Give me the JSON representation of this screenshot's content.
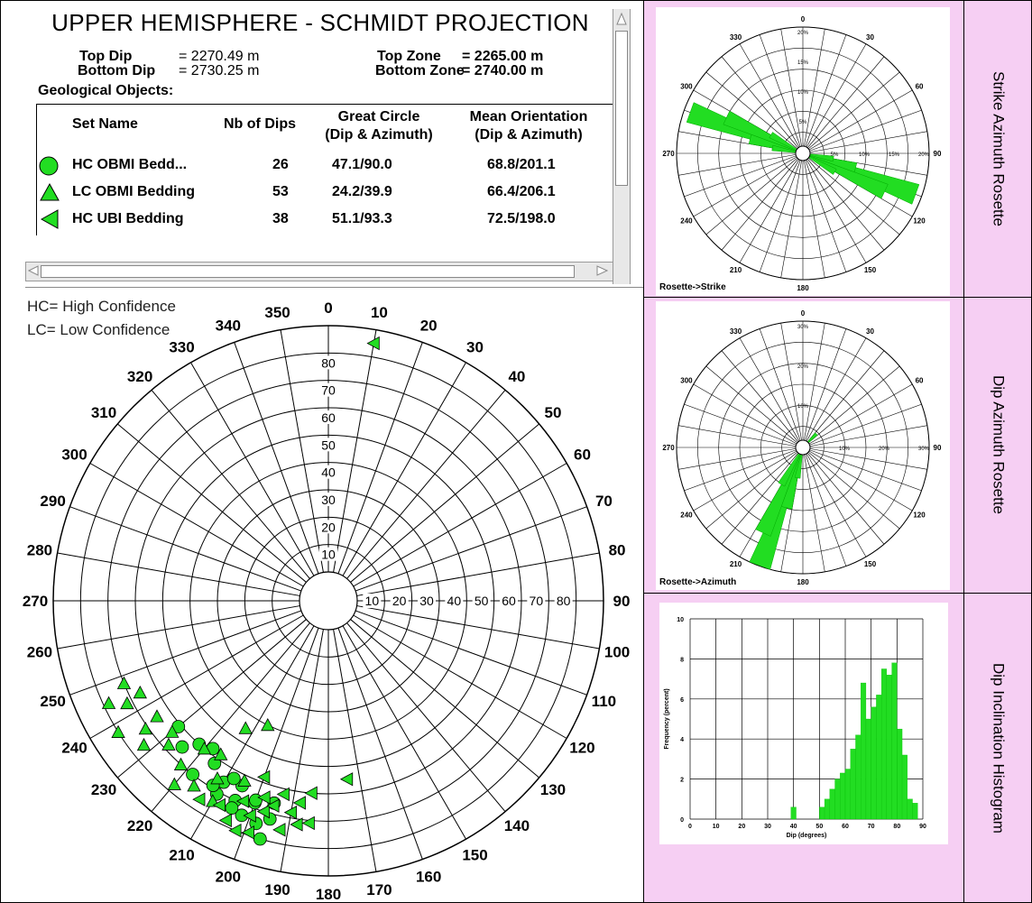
{
  "header": {
    "title": "UPPER HEMISPHERE - SCHMIDT PROJECTION",
    "top_dip_label": "Top    Dip",
    "top_dip_value": "= 2270.49 m",
    "bottom_dip_label": "Bottom Dip",
    "bottom_dip_value": "= 2730.25 m",
    "top_zone_label": "Top    Zone",
    "top_zone_value": "= 2265.00 m",
    "bottom_zone_label": "Bottom Zone",
    "bottom_zone_value": "= 2740.00 m",
    "geo_objects": "Geological Objects:"
  },
  "table": {
    "col_set": "Set Name",
    "col_nb": "Nb of Dips",
    "col_great_1": "Great Circle",
    "col_great_2": "(Dip & Azimuth)",
    "col_mean_1": "Mean Orientation",
    "col_mean_2": "(Dip & Azimuth)",
    "rows": [
      {
        "symbol": "circle",
        "name": "HC OBMI Bedd...",
        "nb": "26",
        "great": "47.1/90.0",
        "mean": "68.8/201.1"
      },
      {
        "symbol": "triangle-up",
        "name": "LC OBMI Bedding",
        "nb": "53",
        "great": "24.2/39.9",
        "mean": "66.4/206.1"
      },
      {
        "symbol": "triangle-left",
        "name": "HC UBI Bedding",
        "nb": "38",
        "great": "51.1/93.3",
        "mean": "72.5/198.0"
      }
    ]
  },
  "notes": {
    "hc": "HC= High Confidence",
    "lc": "LC= Low Confidence"
  },
  "panel_labels": {
    "strike": "Strike Azimuth Rosette",
    "dip_az": "Dip Azimuth Rosette",
    "dip_incl": "Dip Inclination Histogram"
  },
  "colors": {
    "marker_fill": "#22dd22",
    "rosette_fill": "#22dd22",
    "pink_panel": "#f6cff3"
  },
  "chart_data": [
    {
      "type": "scatter",
      "id": "stereonet",
      "azimuth_labels": [
        "0",
        "10",
        "20",
        "30",
        "40",
        "50",
        "60",
        "70",
        "80",
        "90",
        "100",
        "110",
        "120",
        "130",
        "140",
        "150",
        "160",
        "170",
        "180",
        "190",
        "200",
        "210",
        "220",
        "230",
        "240",
        "250",
        "260",
        "270",
        "280",
        "290",
        "300",
        "310",
        "320",
        "330",
        "340",
        "350"
      ],
      "dip_labels_vertical": [
        "10",
        "20",
        "30",
        "40",
        "50",
        "60",
        "70",
        "80"
      ],
      "dip_labels_horizontal": [
        "10",
        "20",
        "30",
        "40",
        "50",
        "60",
        "70",
        "80"
      ],
      "series": [
        {
          "name": "HC OBMI Bedd...",
          "symbol": "circle",
          "points": [
            [
              68,
              200
            ],
            [
              70,
              205
            ],
            [
              72,
              195
            ],
            [
              66,
              210
            ],
            [
              74,
              202
            ],
            [
              62,
              215
            ],
            [
              65,
              225
            ],
            [
              60,
              222
            ],
            [
              71,
              210
            ],
            [
              75,
              198
            ],
            [
              69,
              212
            ],
            [
              64,
              205
            ],
            [
              58,
              218
            ],
            [
              73,
              205
            ],
            [
              67,
              200
            ],
            [
              80,
              196
            ],
            [
              61,
              230
            ],
            [
              70,
              218
            ],
            [
              66,
              195
            ],
            [
              63,
              208
            ]
          ]
        },
        {
          "name": "LC OBMI Bedding",
          "symbol": "triangle-up",
          "points": [
            [
              78,
              245
            ],
            [
              80,
              238
            ],
            [
              72,
              243
            ],
            [
              65,
              236
            ],
            [
              70,
              248
            ],
            [
              75,
              232
            ],
            [
              66,
              244
            ],
            [
              60,
              220
            ],
            [
              73,
              216
            ],
            [
              68,
              228
            ],
            [
              58,
              215
            ],
            [
              62,
              205
            ],
            [
              64,
              230
            ],
            [
              70,
              222
            ],
            [
              66,
              212
            ],
            [
              40,
              206
            ],
            [
              45,
              213
            ],
            [
              71,
              235
            ],
            [
              74,
              210
            ],
            [
              77,
              220
            ]
          ]
        },
        {
          "name": "HC UBI Bedding",
          "symbol": "triangle-left",
          "points": [
            [
              85,
              10
            ],
            [
              72,
              188
            ],
            [
              75,
              192
            ],
            [
              68,
              190
            ],
            [
              70,
              197
            ],
            [
              73,
              200
            ],
            [
              78,
              205
            ],
            [
              65,
              198
            ],
            [
              60,
              185
            ],
            [
              62,
              193
            ],
            [
              55,
              174
            ],
            [
              69,
              203
            ],
            [
              76,
              213
            ],
            [
              80,
              202
            ],
            [
              67,
              195
            ],
            [
              71,
              185
            ],
            [
              58,
              200
            ],
            [
              64,
              188
            ],
            [
              74,
              208
            ],
            [
              79,
              199
            ]
          ]
        }
      ]
    },
    {
      "type": "rosette",
      "id": "strike-rosette",
      "caption": "Rosette->Strike",
      "azimuth_labels": [
        "0",
        "30",
        "60",
        "90",
        "120",
        "150",
        "180",
        "210",
        "240",
        "270",
        "300",
        "330"
      ],
      "ring_labels": [
        "5%",
        "10%",
        "15%",
        "20%"
      ],
      "max_percent": 20,
      "petals": [
        {
          "az": 110,
          "pct": 19
        },
        {
          "az": 115,
          "pct": 14
        },
        {
          "az": 290,
          "pct": 19
        },
        {
          "az": 295,
          "pct": 13
        },
        {
          "az": 105,
          "pct": 8
        },
        {
          "az": 285,
          "pct": 8
        },
        {
          "az": 120,
          "pct": 5
        },
        {
          "az": 300,
          "pct": 5
        },
        {
          "az": 100,
          "pct": 4
        },
        {
          "az": 280,
          "pct": 4
        }
      ]
    },
    {
      "type": "rosette",
      "id": "dip-azimuth-rosette",
      "caption": "Rosette->Azimuth",
      "azimuth_labels": [
        "0",
        "30",
        "60",
        "90",
        "120",
        "150",
        "180",
        "210",
        "240",
        "270",
        "300",
        "330"
      ],
      "ring_labels": [
        "10%",
        "20%",
        "30%"
      ],
      "max_percent": 30,
      "petals": [
        {
          "az": 200,
          "pct": 30
        },
        {
          "az": 205,
          "pct": 22
        },
        {
          "az": 195,
          "pct": 14
        },
        {
          "az": 210,
          "pct": 9
        },
        {
          "az": 45,
          "pct": 3
        },
        {
          "az": 190,
          "pct": 6
        }
      ]
    },
    {
      "type": "bar",
      "id": "dip-histogram",
      "xlabel": "Dip (degrees)",
      "ylabel": "Frequency (percent)",
      "xlim": [
        0,
        90
      ],
      "ylim": [
        0,
        10
      ],
      "x_ticks": [
        "0",
        "10",
        "20",
        "30",
        "40",
        "50",
        "60",
        "70",
        "80",
        "90"
      ],
      "y_ticks": [
        "0",
        "2",
        "4",
        "6",
        "8",
        "10"
      ],
      "bins": [
        40,
        51,
        53,
        55,
        57,
        59,
        61,
        63,
        65,
        67,
        69,
        71,
        73,
        75,
        77,
        79,
        81,
        83,
        85,
        87
      ],
      "values": [
        0.6,
        0.6,
        1.0,
        1.5,
        2.0,
        2.3,
        2.5,
        3.5,
        4.2,
        6.8,
        5.0,
        5.6,
        6.2,
        7.5,
        7.2,
        7.8,
        4.5,
        3.2,
        1.0,
        0.8
      ]
    }
  ]
}
